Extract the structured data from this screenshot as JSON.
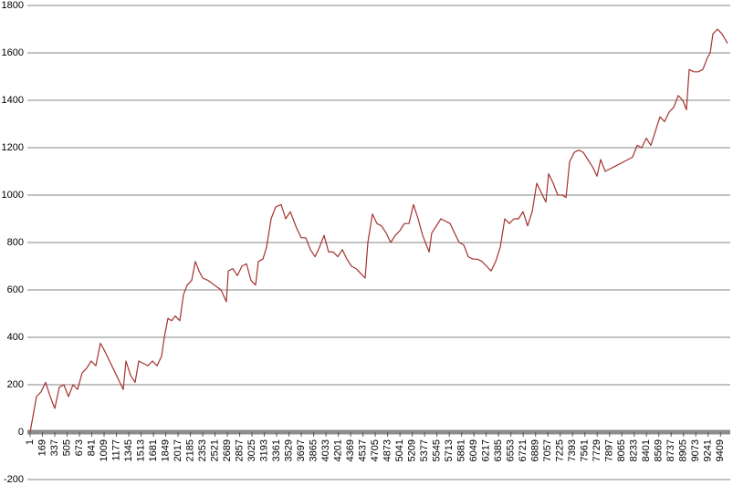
{
  "chart_data": {
    "type": "line",
    "x": [
      1,
      88,
      150,
      212,
      275,
      337,
      399,
      461,
      523,
      586,
      648,
      710,
      772,
      834,
      897,
      959,
      1021,
      1083,
      1145,
      1208,
      1270,
      1307,
      1369,
      1432,
      1481,
      1544,
      1606,
      1668,
      1730,
      1792,
      1830,
      1879,
      1929,
      1979,
      2041,
      2091,
      2141,
      2203,
      2253,
      2302,
      2352,
      2427,
      2514,
      2602,
      2676,
      2702,
      2763,
      2825,
      2887,
      2949,
      3012,
      3074,
      3111,
      3173,
      3223,
      3285,
      3347,
      3422,
      3484,
      3546,
      3634,
      3696,
      3758,
      3820,
      3883,
      3945,
      4007,
      4069,
      4131,
      4194,
      4256,
      4318,
      4380,
      4442,
      4504,
      4567,
      4604,
      4666,
      4728,
      4790,
      4853,
      4915,
      4977,
      5039,
      5101,
      5164,
      5226,
      5288,
      5350,
      5438,
      5475,
      5537,
      5599,
      5661,
      5724,
      5786,
      5848,
      5910,
      5972,
      6035,
      6097,
      6159,
      6221,
      6283,
      6345,
      6408,
      6470,
      6532,
      6594,
      6656,
      6719,
      6781,
      6843,
      6905,
      6967,
      7030,
      7067,
      7129,
      7191,
      7253,
      7304,
      7353,
      7415,
      7477,
      7540,
      7602,
      7664,
      7726,
      7776,
      7838,
      7900,
      7963,
      8025,
      8087,
      8149,
      8211,
      8274,
      8336,
      8398,
      8460,
      8522,
      8585,
      8647,
      8709,
      8771,
      8833,
      8896,
      8945,
      8983,
      9045,
      9107,
      9169,
      9232,
      9269,
      9306,
      9368,
      9430,
      9505
    ],
    "series": [
      {
        "color": "#a3322e",
        "values": [
          0,
          150,
          170,
          210,
          150,
          100,
          190,
          200,
          150,
          200,
          180,
          250,
          270,
          300,
          280,
          375,
          340,
          300,
          260,
          220,
          180,
          300,
          240,
          210,
          300,
          290,
          280,
          300,
          280,
          320,
          400,
          480,
          470,
          490,
          470,
          580,
          620,
          640,
          720,
          680,
          650,
          640,
          620,
          600,
          550,
          680,
          690,
          660,
          700,
          710,
          640,
          620,
          720,
          730,
          780,
          900,
          950,
          960,
          900,
          930,
          860,
          820,
          820,
          770,
          740,
          780,
          830,
          760,
          760,
          740,
          770,
          730,
          700,
          690,
          670,
          650,
          800,
          920,
          880,
          870,
          840,
          800,
          830,
          850,
          880,
          880,
          960,
          900,
          830,
          760,
          840,
          870,
          900,
          890,
          880,
          840,
          800,
          790,
          740,
          730,
          730,
          720,
          700,
          680,
          720,
          780,
          900,
          880,
          900,
          900,
          930,
          870,
          930,
          1050,
          1010,
          970,
          1090,
          1050,
          1000,
          1000,
          990,
          1140,
          1180,
          1190,
          1180,
          1150,
          1120,
          1080,
          1150,
          1100,
          1110,
          1120,
          1130,
          1140,
          1150,
          1160,
          1210,
          1200,
          1240,
          1210,
          1270,
          1330,
          1310,
          1350,
          1370,
          1420,
          1400,
          1360,
          1530,
          1520,
          1520,
          1530,
          1580,
          1600,
          1680,
          1700,
          1680,
          1640
        ]
      }
    ],
    "xlim": [
      1,
      9530
    ],
    "xticks": [
      1,
      169,
      337,
      505,
      673,
      841,
      1009,
      1177,
      1345,
      1513,
      1681,
      1849,
      2017,
      2185,
      2353,
      2521,
      2689,
      2857,
      3025,
      3193,
      3361,
      3529,
      3697,
      3865,
      4033,
      4201,
      4369,
      4537,
      4705,
      4873,
      5041,
      5209,
      5377,
      5545,
      5713,
      5881,
      6049,
      6217,
      6385,
      6553,
      6721,
      6889,
      7057,
      7225,
      7393,
      7561,
      7729,
      7897,
      8065,
      8233,
      8401,
      8569,
      8737,
      8905,
      9073,
      9241,
      9409
    ],
    "ylim": [
      -200,
      1800
    ],
    "yticks": [
      -200,
      0,
      200,
      400,
      600,
      800,
      1000,
      1200,
      1400,
      1600,
      1800
    ],
    "grid": true
  }
}
